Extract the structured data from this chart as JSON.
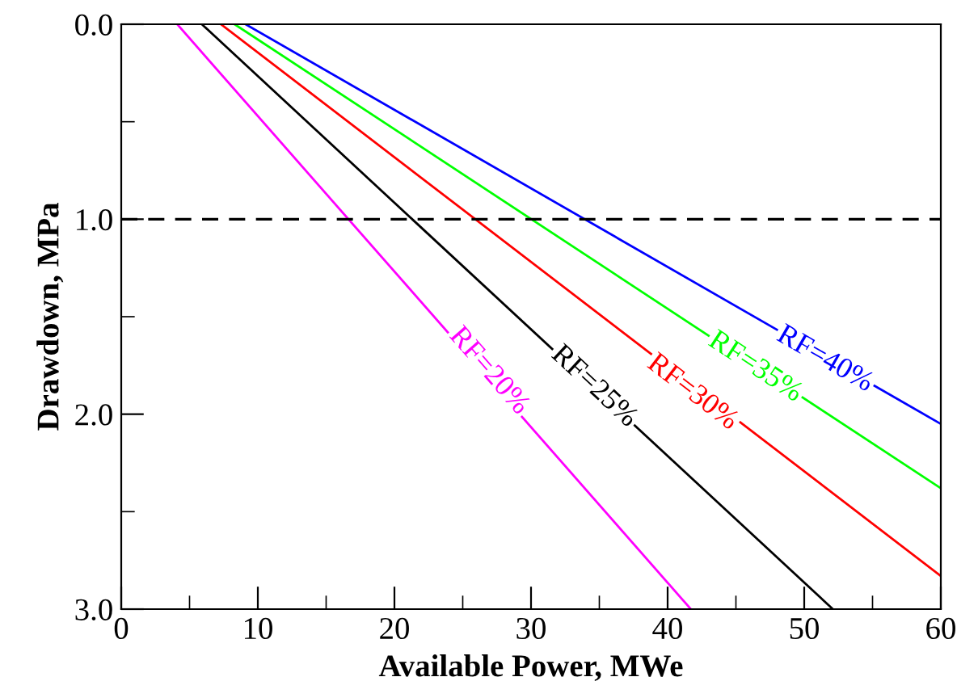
{
  "chart_data": {
    "type": "line",
    "xlabel": "Available Power, MWe",
    "ylabel": "Drawdown, MPa",
    "series": [
      {
        "color": "#ff00ff",
        "x": [
          4.1,
          41.7
        ],
        "values": [
          0.0,
          3.0
        ]
      },
      {
        "color": "#000000",
        "x": [
          5.9,
          52.1
        ],
        "values": [
          0.0,
          3.0
        ]
      },
      {
        "color": "#ff0000",
        "x": [
          7.3,
          60
        ],
        "values": [
          0.0,
          2.83
        ]
      },
      {
        "color": "#00ff00",
        "x": [
          8.3,
          60
        ],
        "values": [
          0.0,
          2.38
        ]
      },
      {
        "color": "#0000ff",
        "x": [
          9.1,
          60
        ],
        "values": [
          0.0,
          2.05
        ]
      }
    ],
    "annotations": [
      {
        "text": "RF=20%",
        "x": 26.9,
        "y": 1.78
      },
      {
        "text": "RF=25%",
        "x": 34.6,
        "y": 1.86
      },
      {
        "text": "RF=30%",
        "x": 41.8,
        "y": 1.89
      },
      {
        "text": "RF=35%",
        "x": 46.4,
        "y": 1.76
      },
      {
        "text": "RF=40%",
        "x": 51.5,
        "y": 1.72
      }
    ],
    "ref_lines": [
      {
        "axis": "y",
        "value": 1.0,
        "line_style": "dashed",
        "color": "#000000"
      }
    ],
    "xlim": [
      0,
      60
    ],
    "xticks": [
      0,
      10,
      20,
      30,
      40,
      50,
      60
    ],
    "ylim": [
      3.0,
      0.0
    ],
    "yticks": [
      {
        "value": 0,
        "label": "0.0"
      },
      {
        "value": 1,
        "label": "1.0"
      },
      {
        "value": 2,
        "label": "2.0"
      },
      {
        "value": 3,
        "label": "3.0"
      }
    ],
    "grid": false,
    "legend": false,
    "marker": "none",
    "line_style": "solid"
  }
}
